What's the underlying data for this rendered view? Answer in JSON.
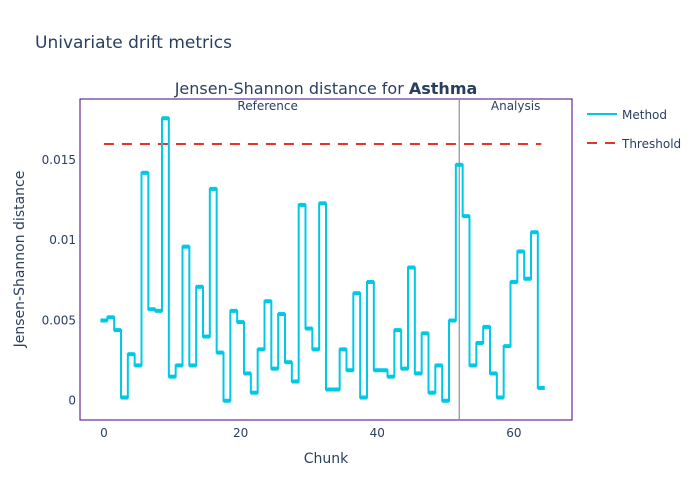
{
  "figure_title": "Univariate drift metrics",
  "chart_data": {
    "type": "line",
    "line_shape": "step-center",
    "title_prefix": "Jensen-Shannon distance for ",
    "title_bold": "Asthma",
    "xlabel": "Chunk",
    "ylabel": "Jensen-Shannon distance",
    "xlim": [
      -3.5,
      68.5
    ],
    "ylim": [
      -0.0012,
      0.0188
    ],
    "x_ticks": [
      0,
      20,
      40,
      60
    ],
    "y_ticks": [
      0,
      0.005,
      0.01,
      0.015
    ],
    "y_tick_labels": [
      "0",
      "0.005",
      "0.01",
      "0.015"
    ],
    "threshold": 0.016,
    "split_x": 52,
    "period_labels": {
      "reference": "Reference",
      "analysis": "Analysis"
    },
    "legend": [
      {
        "name": "Method",
        "color": "#00c8e5",
        "dash": "solid"
      },
      {
        "name": "Threshold",
        "color": "#e5352a",
        "dash": "dash"
      }
    ],
    "series": [
      {
        "name": "Method",
        "color": "#00c8e5",
        "x": [
          0,
          1,
          2,
          3,
          4,
          5,
          6,
          7,
          8,
          9,
          10,
          11,
          12,
          13,
          14,
          15,
          16,
          17,
          18,
          19,
          20,
          21,
          22,
          23,
          24,
          25,
          26,
          27,
          28,
          29,
          30,
          31,
          32,
          33,
          34,
          35,
          36,
          37,
          38,
          39,
          40,
          41,
          42,
          43,
          44,
          45,
          46,
          47,
          48,
          49,
          50,
          51,
          52,
          53,
          54,
          55,
          56,
          57,
          58,
          59,
          60,
          61,
          62,
          63,
          64
        ],
        "y": [
          0.005,
          0.0052,
          0.0044,
          0.0002,
          0.0029,
          0.0022,
          0.0142,
          0.0057,
          0.0056,
          0.0176,
          0.0015,
          0.0022,
          0.0096,
          0.0022,
          0.0071,
          0.004,
          0.0132,
          0.003,
          0.0,
          0.0056,
          0.0049,
          0.0017,
          0.0005,
          0.0032,
          0.0062,
          0.002,
          0.0054,
          0.0024,
          0.0012,
          0.0122,
          0.0045,
          0.0032,
          0.0123,
          0.0007,
          0.0007,
          0.0032,
          0.0019,
          0.0067,
          0.0002,
          0.0074,
          0.0019,
          0.0019,
          0.0015,
          0.0044,
          0.002,
          0.0083,
          0.0017,
          0.0042,
          0.0005,
          0.0022,
          0.0,
          0.005,
          0.0147,
          0.0115,
          0.0022,
          0.0036,
          0.0046,
          0.0017,
          0.0002,
          0.0034,
          0.0074,
          0.0093,
          0.0076,
          0.0105,
          0.0008
        ]
      }
    ]
  }
}
